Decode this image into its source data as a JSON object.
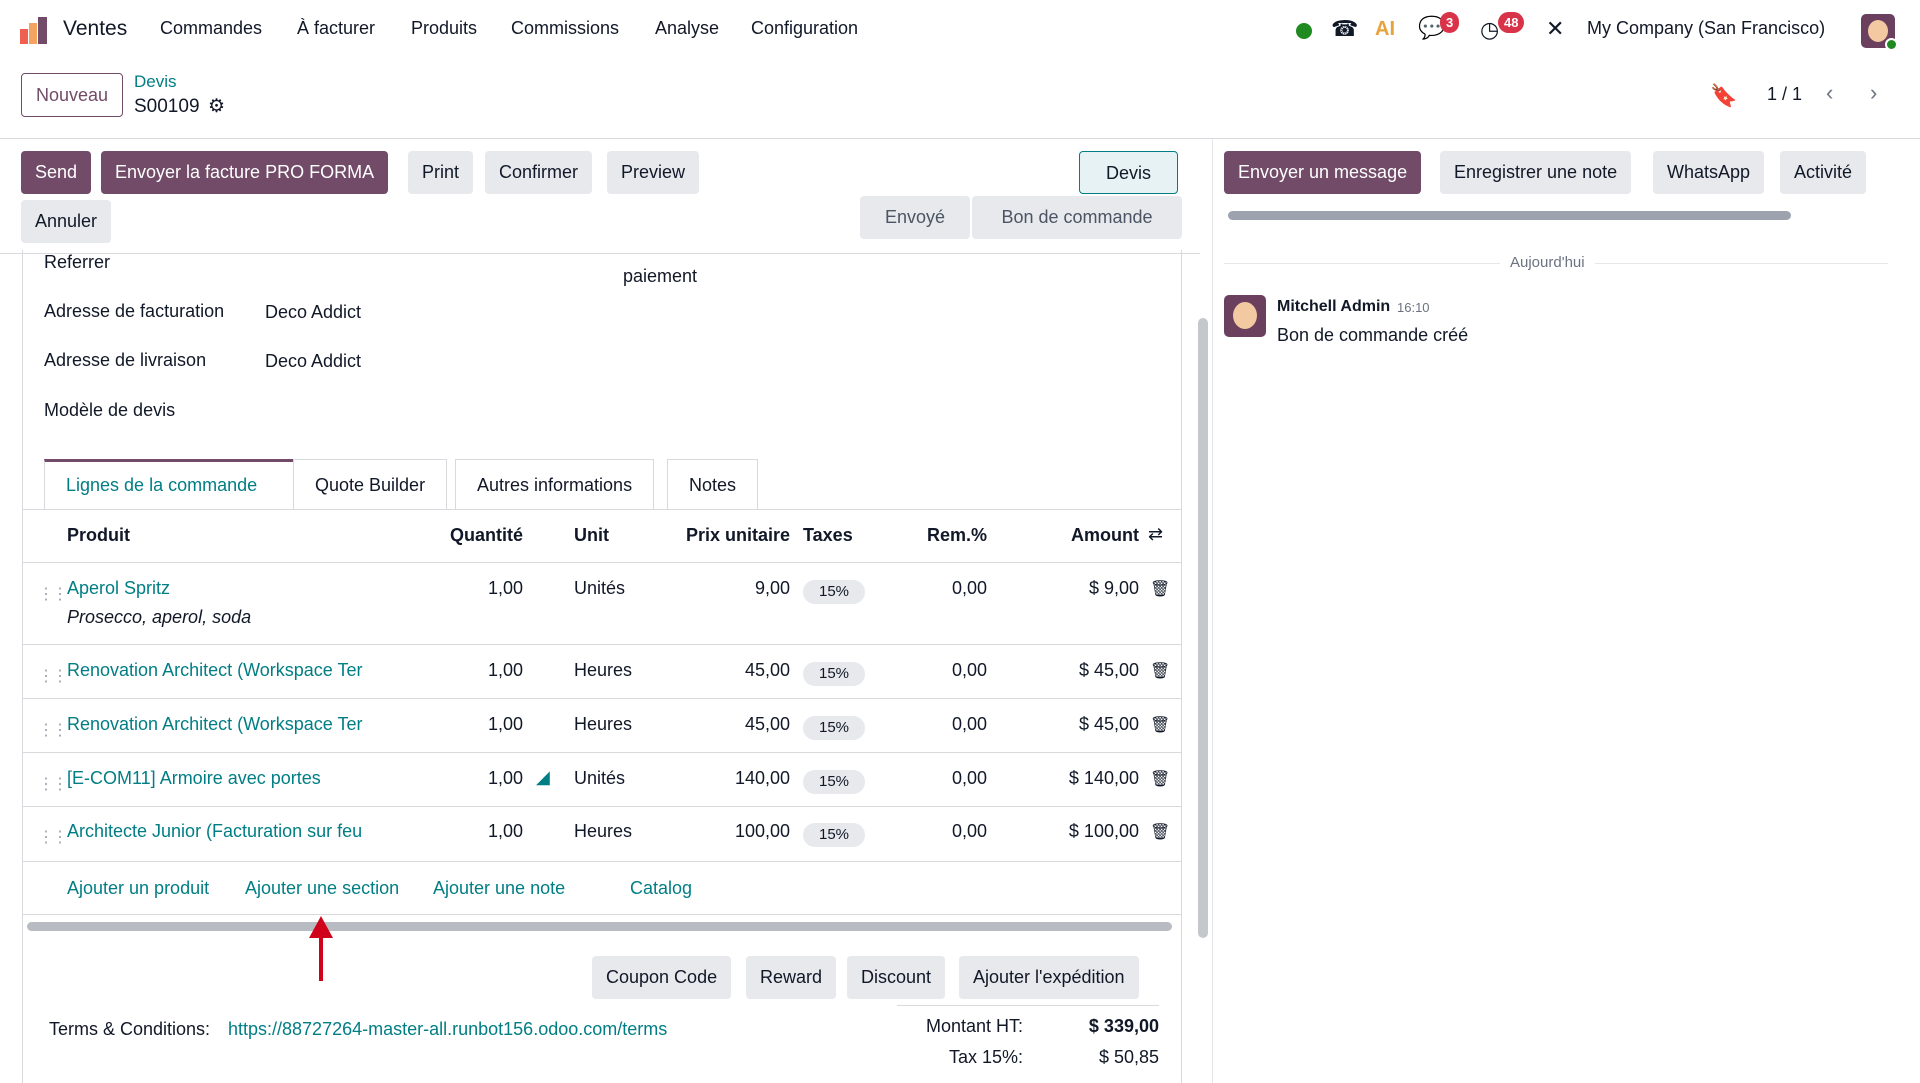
{
  "navbar": {
    "app": "Ventes",
    "menu": [
      "Commandes",
      "À facturer",
      "Produits",
      "Commissions",
      "Analyse",
      "Configuration"
    ],
    "messages_count": "3",
    "activities_count": "48",
    "company": "My Company (San Francisco)",
    "ai_label": "AI"
  },
  "control": {
    "new_label": "Nouveau",
    "breadcrumb": "Devis",
    "record": "S00109",
    "pager": "1 / 1"
  },
  "actions": {
    "buttons": [
      "Send",
      "Envoyer la facture PRO FORMA",
      "Print",
      "Confirmer",
      "Preview",
      "Annuler"
    ],
    "status": [
      "Devis",
      "Envoyé",
      "Bon de commande"
    ],
    "status_active": "Devis"
  },
  "form": {
    "fields": [
      {
        "label": "Referrer",
        "value": ""
      },
      {
        "label": "Adresse de facturation",
        "value": "Deco Addict"
      },
      {
        "label": "Adresse de livraison",
        "value": "Deco Addict"
      },
      {
        "label": "Modèle de devis",
        "value": ""
      }
    ],
    "partial_label": "paiement",
    "tabs": [
      "Lignes de la commande",
      "Quote Builder",
      "Autres informations",
      "Notes"
    ],
    "columns": [
      "Produit",
      "Quantité",
      "Unit",
      "Prix unitaire",
      "Taxes",
      "Rem.%",
      "Amount"
    ],
    "lines": [
      {
        "product": "Aperol Spritz",
        "description": "Prosecco, aperol, soda",
        "qty": "1,00",
        "unit": "Unités",
        "price": "9,00",
        "tax": "15%",
        "disc": "0,00",
        "amount": "$ 9,00"
      },
      {
        "product": "Renovation Architect (Workspace Ter",
        "qty": "1,00",
        "unit": "Heures",
        "price": "45,00",
        "tax": "15%",
        "disc": "0,00",
        "amount": "$ 45,00"
      },
      {
        "product": "Renovation Architect (Workspace Ter",
        "qty": "1,00",
        "unit": "Heures",
        "price": "45,00",
        "tax": "15%",
        "disc": "0,00",
        "amount": "$ 45,00"
      },
      {
        "product": "[E-COM11] Armoire avec portes",
        "qty": "1,00",
        "unit": "Unités",
        "price": "140,00",
        "tax": "15%",
        "disc": "0,00",
        "amount": "$ 140,00"
      },
      {
        "product": "Architecte Junior (Facturation sur feu",
        "qty": "1,00",
        "unit": "Heures",
        "price": "100,00",
        "tax": "15%",
        "disc": "0,00",
        "amount": "$ 100,00"
      }
    ],
    "add_links": [
      "Ajouter un produit",
      "Ajouter une section",
      "Ajouter une note",
      "Catalog"
    ],
    "promo_buttons": [
      "Coupon Code",
      "Reward",
      "Discount",
      "Ajouter l'expédition"
    ],
    "terms_label": "Terms & Conditions:",
    "terms_url": "https://88727264-master-all.runbot156.odoo.com/terms",
    "totals": [
      {
        "label": "Montant HT:",
        "value": "$ 339,00"
      },
      {
        "label": "Tax 15%:",
        "value": "$ 50,85"
      }
    ]
  },
  "chatter": {
    "buttons": [
      "Envoyer un message",
      "Enregistrer une note",
      "WhatsApp",
      "Activité"
    ],
    "date_sep": "Aujourd'hui",
    "message": {
      "author": "Mitchell Admin",
      "time": "16:10",
      "body": "Bon de commande créé"
    }
  },
  "colors": {
    "primary": "#714b67",
    "link": "#017e84",
    "badge": "#d9334a",
    "online": "#1f8a1f"
  }
}
